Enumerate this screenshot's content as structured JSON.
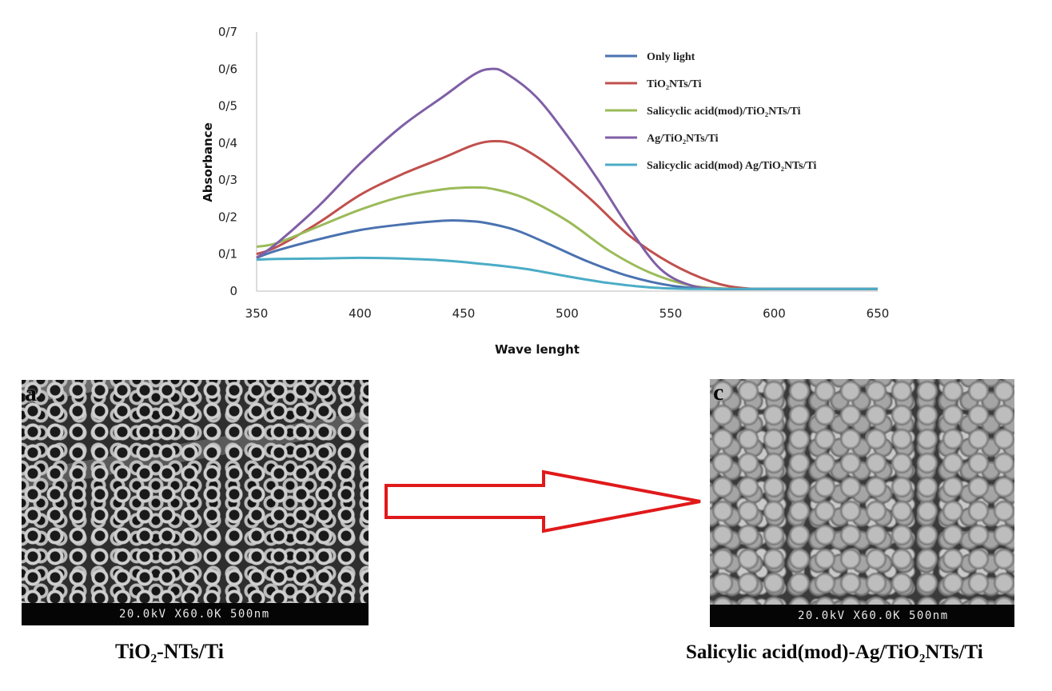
{
  "chart_data": {
    "type": "line",
    "xlabel": "Wave lenght",
    "ylabel": "Absorbance",
    "xlim": [
      350,
      650
    ],
    "ylim": [
      0,
      0.7
    ],
    "x_ticks": [
      "350",
      "400",
      "450",
      "500",
      "550",
      "600",
      "650"
    ],
    "y_ticks": [
      "0",
      "0/1",
      "0/2",
      "0/3",
      "0/4",
      "0/5",
      "0/6",
      "0/7"
    ],
    "grid": "none",
    "legend_position": "top-right",
    "series": [
      {
        "name": "Only light",
        "color": "#4a72b0",
        "points": [
          [
            350,
            0.09
          ],
          [
            360,
            0.11
          ],
          [
            380,
            0.14
          ],
          [
            400,
            0.165
          ],
          [
            420,
            0.18
          ],
          [
            440,
            0.19
          ],
          [
            450,
            0.19
          ],
          [
            460,
            0.185
          ],
          [
            475,
            0.165
          ],
          [
            490,
            0.13
          ],
          [
            510,
            0.08
          ],
          [
            530,
            0.04
          ],
          [
            550,
            0.015
          ],
          [
            570,
            0.006
          ],
          [
            600,
            0.006
          ],
          [
            650,
            0.006
          ]
        ]
      },
      {
        "name": "TiO₂NTs/Ti",
        "color": "#c0504d",
        "points": [
          [
            350,
            0.1
          ],
          [
            360,
            0.12
          ],
          [
            380,
            0.185
          ],
          [
            400,
            0.26
          ],
          [
            420,
            0.315
          ],
          [
            440,
            0.36
          ],
          [
            455,
            0.395
          ],
          [
            465,
            0.405
          ],
          [
            475,
            0.395
          ],
          [
            490,
            0.345
          ],
          [
            510,
            0.255
          ],
          [
            530,
            0.15
          ],
          [
            550,
            0.075
          ],
          [
            570,
            0.025
          ],
          [
            585,
            0.008
          ],
          [
            600,
            0.006
          ],
          [
            650,
            0.006
          ]
        ]
      },
      {
        "name": "Salicyclic acid(mod)/TiO₂NTs/Ti",
        "color": "#9bbb59",
        "points": [
          [
            350,
            0.12
          ],
          [
            360,
            0.13
          ],
          [
            380,
            0.175
          ],
          [
            400,
            0.22
          ],
          [
            420,
            0.255
          ],
          [
            440,
            0.275
          ],
          [
            455,
            0.28
          ],
          [
            465,
            0.275
          ],
          [
            480,
            0.25
          ],
          [
            500,
            0.19
          ],
          [
            520,
            0.11
          ],
          [
            540,
            0.05
          ],
          [
            560,
            0.015
          ],
          [
            580,
            0.006
          ],
          [
            600,
            0.006
          ],
          [
            650,
            0.006
          ]
        ]
      },
      {
        "name": "Ag/TiO₂NTs/Ti",
        "color": "#7f5fa6",
        "points": [
          [
            350,
            0.09
          ],
          [
            360,
            0.13
          ],
          [
            380,
            0.23
          ],
          [
            400,
            0.345
          ],
          [
            420,
            0.445
          ],
          [
            440,
            0.525
          ],
          [
            455,
            0.585
          ],
          [
            463,
            0.6
          ],
          [
            470,
            0.59
          ],
          [
            485,
            0.525
          ],
          [
            500,
            0.42
          ],
          [
            515,
            0.3
          ],
          [
            530,
            0.17
          ],
          [
            545,
            0.06
          ],
          [
            560,
            0.015
          ],
          [
            575,
            0.006
          ],
          [
            600,
            0.006
          ],
          [
            650,
            0.006
          ]
        ]
      },
      {
        "name": "Salicyclic acid(mod) Ag/TiO₂NTs/Ti",
        "color": "#4bacc6",
        "points": [
          [
            350,
            0.085
          ],
          [
            360,
            0.087
          ],
          [
            380,
            0.088
          ],
          [
            400,
            0.09
          ],
          [
            420,
            0.088
          ],
          [
            440,
            0.083
          ],
          [
            460,
            0.073
          ],
          [
            480,
            0.06
          ],
          [
            500,
            0.04
          ],
          [
            520,
            0.022
          ],
          [
            540,
            0.01
          ],
          [
            560,
            0.006
          ],
          [
            600,
            0.006
          ],
          [
            650,
            0.006
          ]
        ]
      }
    ]
  },
  "sem_images": {
    "a": {
      "letter": "a",
      "scale_bar": "20.0kV X60.0K  500nm",
      "caption": "TiO₂-NTs/Ti"
    },
    "c": {
      "letter": "c",
      "scale_bar": "20.0kV X60.0K  500nm",
      "caption": "Salicylic acid(mod)-Ag/TiO₂NTs/Ti"
    }
  },
  "colors": {
    "arrow": "#e0191b"
  }
}
